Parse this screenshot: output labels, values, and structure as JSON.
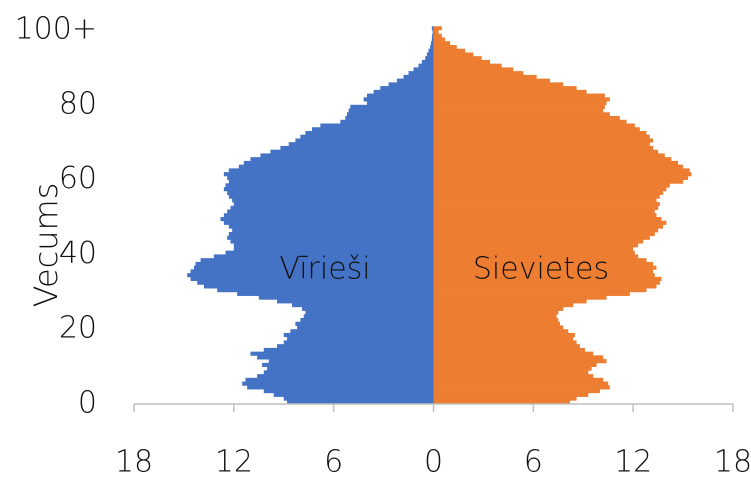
{
  "chart_data": {
    "type": "bar",
    "orientation": "horizontal",
    "ylabel": "Vecums",
    "annotations": [
      "Vīrieši",
      "Sievietes"
    ],
    "y": [
      0,
      1,
      2,
      3,
      4,
      5,
      6,
      7,
      8,
      9,
      10,
      11,
      12,
      13,
      14,
      15,
      16,
      17,
      18,
      19,
      20,
      21,
      22,
      23,
      24,
      25,
      26,
      27,
      28,
      29,
      30,
      31,
      32,
      33,
      34,
      35,
      36,
      37,
      38,
      39,
      40,
      41,
      42,
      43,
      44,
      45,
      46,
      47,
      48,
      49,
      50,
      51,
      52,
      53,
      54,
      55,
      56,
      57,
      58,
      59,
      60,
      61,
      62,
      63,
      64,
      65,
      66,
      67,
      68,
      69,
      70,
      71,
      72,
      73,
      74,
      75,
      76,
      77,
      78,
      79,
      80,
      81,
      82,
      83,
      84,
      85,
      86,
      87,
      88,
      89,
      90,
      91,
      92,
      93,
      94,
      95,
      96,
      97,
      98,
      99,
      100
    ],
    "series": [
      {
        "color": "#4472c4",
        "values": [
          -8.8,
          -9.0,
          -9.6,
          -10.2,
          -11.2,
          -11.5,
          -11.3,
          -10.6,
          -10.2,
          -10.0,
          -10.3,
          -9.9,
          -10.6,
          -11.0,
          -10.2,
          -9.4,
          -9.0,
          -8.8,
          -9.0,
          -8.6,
          -8.2,
          -8.3,
          -8.0,
          -7.8,
          -7.7,
          -7.9,
          -8.5,
          -9.4,
          -10.5,
          -11.8,
          -13.0,
          -13.8,
          -14.2,
          -14.6,
          -14.8,
          -14.6,
          -14.4,
          -14.3,
          -14.0,
          -13.2,
          -12.5,
          -12.0,
          -12.0,
          -12.2,
          -12.4,
          -12.3,
          -12.1,
          -12.3,
          -12.6,
          -12.8,
          -12.6,
          -12.4,
          -12.2,
          -12.0,
          -12.1,
          -12.3,
          -12.4,
          -12.6,
          -12.5,
          -12.3,
          -12.4,
          -12.6,
          -12.3,
          -11.7,
          -11.4,
          -11.0,
          -10.4,
          -9.8,
          -9.2,
          -8.7,
          -8.3,
          -8.0,
          -7.7,
          -7.3,
          -6.8,
          -5.6,
          -5.3,
          -5.2,
          -5.1,
          -5.0,
          -4.0,
          -4.2,
          -4.0,
          -3.6,
          -3.2,
          -2.7,
          -2.2,
          -1.8,
          -1.5,
          -1.2,
          -0.9,
          -0.7,
          -0.5,
          -0.4,
          -0.3,
          -0.2,
          -0.15,
          -0.1,
          -0.08,
          -0.05,
          -0.1
        ]
      },
      {
        "color": "#ed7d31",
        "values": [
          8.2,
          8.6,
          9.3,
          10.0,
          10.6,
          10.5,
          10.2,
          9.6,
          9.3,
          9.5,
          9.8,
          10.4,
          10.2,
          9.6,
          9.1,
          8.8,
          8.6,
          8.4,
          8.5,
          8.1,
          7.8,
          7.6,
          7.5,
          7.4,
          7.5,
          7.8,
          8.4,
          9.2,
          10.4,
          11.8,
          12.8,
          13.4,
          13.6,
          13.7,
          13.3,
          13.2,
          13.4,
          13.2,
          12.8,
          12.3,
          12.1,
          12.0,
          12.3,
          12.6,
          13.0,
          13.3,
          13.5,
          13.8,
          14.0,
          13.7,
          13.4,
          13.3,
          13.5,
          13.6,
          13.4,
          13.6,
          13.8,
          14.0,
          14.2,
          15.0,
          15.3,
          15.5,
          15.4,
          15.0,
          14.7,
          14.3,
          13.9,
          13.5,
          13.2,
          13.0,
          13.2,
          13.0,
          12.8,
          12.4,
          12.1,
          11.6,
          11.2,
          10.6,
          10.2,
          10.3,
          10.4,
          10.6,
          10.3,
          9.2,
          8.6,
          7.8,
          7.0,
          6.2,
          5.4,
          4.8,
          4.1,
          3.4,
          2.9,
          2.4,
          1.9,
          1.4,
          1.0,
          0.7,
          0.5,
          0.3,
          0.5
        ]
      }
    ],
    "xlim": [
      -18,
      18
    ],
    "xticks": [
      {
        "value": -18,
        "label": "18"
      },
      {
        "value": -12,
        "label": "12"
      },
      {
        "value": -6,
        "label": "6"
      },
      0,
      6,
      12,
      18
    ],
    "ylim": [
      0,
      101
    ],
    "yticks": [
      0,
      20,
      40,
      60,
      80,
      {
        "value": 100,
        "label": "100+"
      }
    ]
  }
}
